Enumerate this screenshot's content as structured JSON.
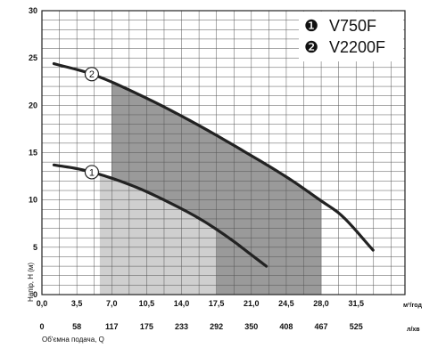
{
  "chart_data": {
    "type": "line",
    "title": "",
    "xlabel": "Об'ємна подача, Q",
    "ylabel": "Напір, Н (м)",
    "xlim": [
      0,
      36.4
    ],
    "ylim": [
      0,
      30
    ],
    "x_ticks_primary": [
      "0,0",
      "3,5",
      "7,0",
      "10,5",
      "14,0",
      "17,5",
      "21,0",
      "24,5",
      "28,0",
      "31,5"
    ],
    "x_ticks_primary_values": [
      0,
      3.5,
      7.0,
      10.5,
      14.0,
      17.5,
      21.0,
      24.5,
      28.0,
      31.5
    ],
    "x_unit_primary": "м³/год",
    "x_ticks_secondary": [
      "0",
      "58",
      "117",
      "175",
      "233",
      "292",
      "350",
      "408",
      "467",
      "525"
    ],
    "x_unit_secondary": "л/хв",
    "y_ticks": [
      "0",
      "5",
      "10",
      "15",
      "20",
      "25",
      "30"
    ],
    "y_ticks_values": [
      0,
      5,
      10,
      15,
      20,
      25,
      30
    ],
    "grid": true,
    "legend_position": "top-right",
    "legend": [
      {
        "marker": "❶",
        "label": "V750F"
      },
      {
        "marker": "❷",
        "label": "V2200F"
      }
    ],
    "series": [
      {
        "marker_label": "1",
        "x": [
          1.2,
          4,
          7,
          10,
          13,
          16,
          19,
          21,
          22.5
        ],
        "y": [
          13.7,
          13.2,
          12.3,
          11.1,
          9.6,
          7.9,
          5.8,
          4.2,
          3.0
        ],
        "operating_range": [
          5.8,
          17.5
        ],
        "color": "#222222"
      },
      {
        "marker_label": "2",
        "x": [
          1.2,
          5,
          10,
          15,
          20,
          25,
          28,
          30,
          33.2
        ],
        "y": [
          24.4,
          23.3,
          21.0,
          18.3,
          15.3,
          12.1,
          9.9,
          8.4,
          4.7
        ],
        "operating_range": [
          7.0,
          28.0
        ],
        "color": "#222222"
      }
    ],
    "colors": {
      "range_1": "#cfcfcf",
      "range_2": "#9a9a9a",
      "grid": "#555555",
      "curve": "#222222"
    }
  }
}
